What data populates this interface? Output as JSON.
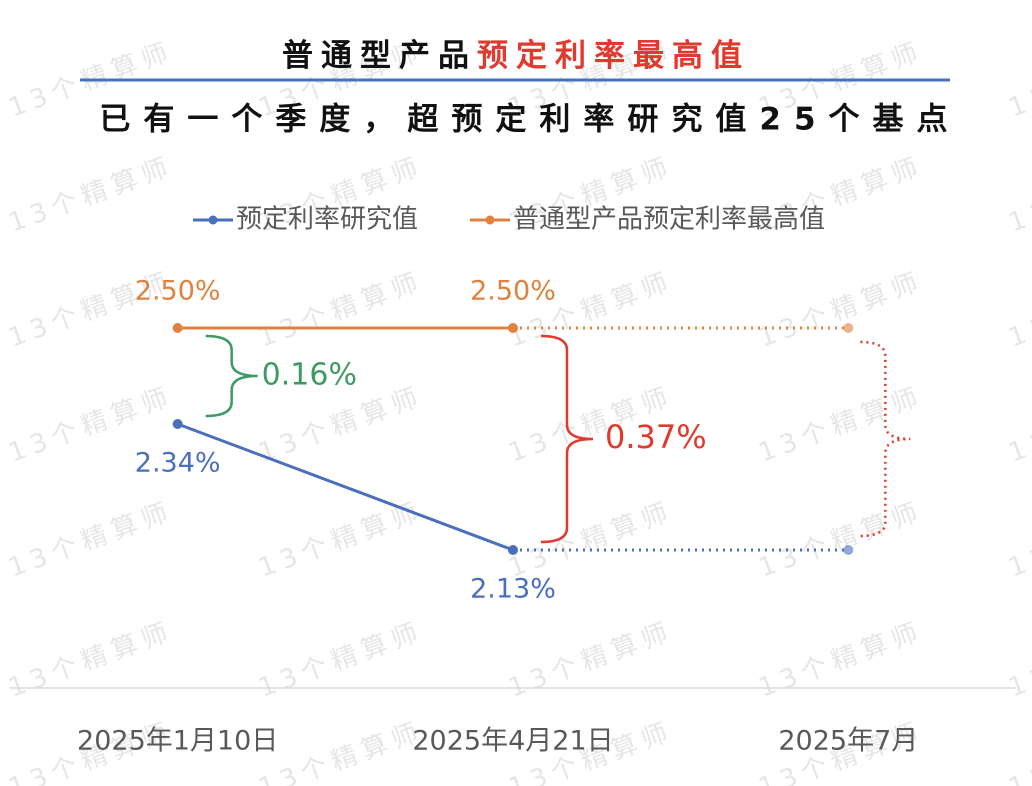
{
  "chart_data": {
    "type": "line",
    "title": {
      "text": "普通型产品",
      "highlight": "预定利率最高值",
      "highlight_color": "#e03a2e"
    },
    "subtitle": "已有一个季度，超预定利率研究值25个基点",
    "watermark": "13个精算师",
    "categories": [
      "2025年1月10日",
      "2025年4月21日",
      "2025年7月"
    ],
    "dotted_from_index": 1,
    "series": [
      {
        "name": "预定利率研究值",
        "color": "#4a6fbd",
        "values": [
          2.34,
          2.13,
          2.13
        ],
        "value_labels": [
          "2.34%",
          "2.13%",
          null
        ]
      },
      {
        "name": "普通型产品预定利率最高值",
        "color": "#e0823f",
        "values": [
          2.5,
          2.5,
          2.5
        ],
        "value_labels": [
          "2.50%",
          "2.50%",
          null
        ]
      }
    ],
    "annotations": [
      {
        "label": "0.16%",
        "value": 0.16,
        "color": "#3d9b62"
      },
      {
        "label": "0.37%",
        "value": 0.37,
        "color": "#e03a2e"
      }
    ],
    "ylim": [
      1.9,
      2.7
    ],
    "grid": false
  }
}
